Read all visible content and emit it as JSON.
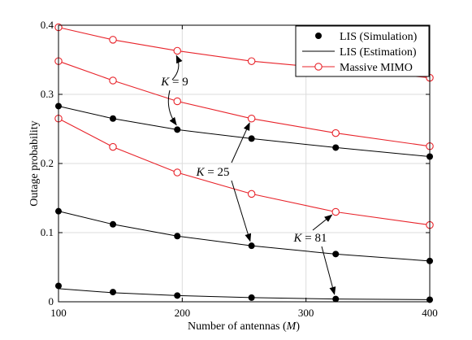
{
  "chart_data": {
    "type": "line",
    "xlabel": "Number of antennas (M)",
    "ylabel": "Outage probability",
    "xlim": [
      100,
      400
    ],
    "ylim": [
      0,
      0.4
    ],
    "xticks": [
      100,
      200,
      300,
      400
    ],
    "yticks": [
      0,
      0.1,
      0.2,
      0.3,
      0.4
    ],
    "xtick_labels": [
      "100",
      "200",
      "300",
      "400"
    ],
    "ytick_labels": [
      "0",
      "0.1",
      "0.2",
      "0.3",
      "0.4"
    ],
    "grid": true,
    "legend_position": "top-right",
    "legend": [
      {
        "label": "LIS (Simulation)",
        "style": "black-dot"
      },
      {
        "label": "LIS (Estimation)",
        "style": "black-line"
      },
      {
        "label": "Massive MIMO",
        "style": "red-line-open-circle"
      }
    ],
    "x": [
      100,
      144,
      196,
      256,
      324,
      400
    ],
    "groups": [
      {
        "label": "K = 9",
        "lis_simulation": [
          0.283,
          0.265,
          0.249,
          0.236,
          0.223,
          0.21
        ],
        "lis_estimation": [
          0.283,
          0.265,
          0.249,
          0.236,
          0.223,
          0.21
        ],
        "massive_mimo": [
          0.397,
          0.379,
          0.363,
          0.348,
          0.337,
          0.324
        ]
      },
      {
        "label": "K = 25",
        "lis_simulation": [
          0.131,
          0.112,
          0.095,
          0.081,
          0.069,
          0.059
        ],
        "lis_estimation": [
          0.131,
          0.112,
          0.095,
          0.081,
          0.069,
          0.059
        ],
        "massive_mimo": [
          0.348,
          0.32,
          0.29,
          0.265,
          0.244,
          0.225
        ]
      },
      {
        "label": "K = 81",
        "lis_simulation": [
          0.023,
          0.014,
          0.009,
          0.006,
          0.004,
          0.003
        ],
        "lis_estimation": [
          0.019,
          0.013,
          0.009,
          0.006,
          0.004,
          0.003
        ],
        "massive_mimo": [
          0.265,
          0.224,
          0.187,
          0.156,
          0.13,
          0.111
        ]
      }
    ],
    "colors": {
      "lis": "#000000",
      "massive_mimo": "#e8232a",
      "grid": "#dcdcdc"
    }
  }
}
